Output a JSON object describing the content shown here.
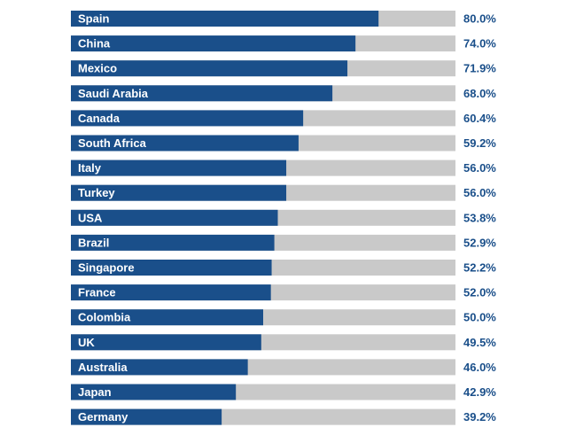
{
  "chart_data": {
    "type": "bar",
    "orientation": "horizontal",
    "title": "",
    "xlabel": "",
    "ylabel": "",
    "xlim": [
      0,
      100
    ],
    "grid": false,
    "legend": "none",
    "categories": [
      "Spain",
      "China",
      "Mexico",
      "Saudi Arabia",
      "Canada",
      "South Africa",
      "Italy",
      "Turkey",
      "USA",
      "Brazil",
      "Singapore",
      "France",
      "Colombia",
      "UK",
      "Australia",
      "Japan",
      "Germany"
    ],
    "values": [
      80.0,
      74.0,
      71.9,
      68.0,
      60.4,
      59.2,
      56.0,
      56.0,
      53.8,
      52.9,
      52.2,
      52.0,
      50.0,
      49.5,
      46.0,
      42.9,
      39.2
    ],
    "value_labels": [
      "80.0%",
      "74.0%",
      "71.9%",
      "68.0%",
      "60.4%",
      "59.2%",
      "56.0%",
      "56.0%",
      "53.8%",
      "52.9%",
      "52.2%",
      "52.0%",
      "50.0%",
      "49.5%",
      "46.0%",
      "42.9%",
      "39.2%"
    ],
    "colors": {
      "bar": "#1a4f8a",
      "track": "#c9c9c9",
      "value_text": "#1a4f8a",
      "bar_text": "#ffffff"
    }
  }
}
